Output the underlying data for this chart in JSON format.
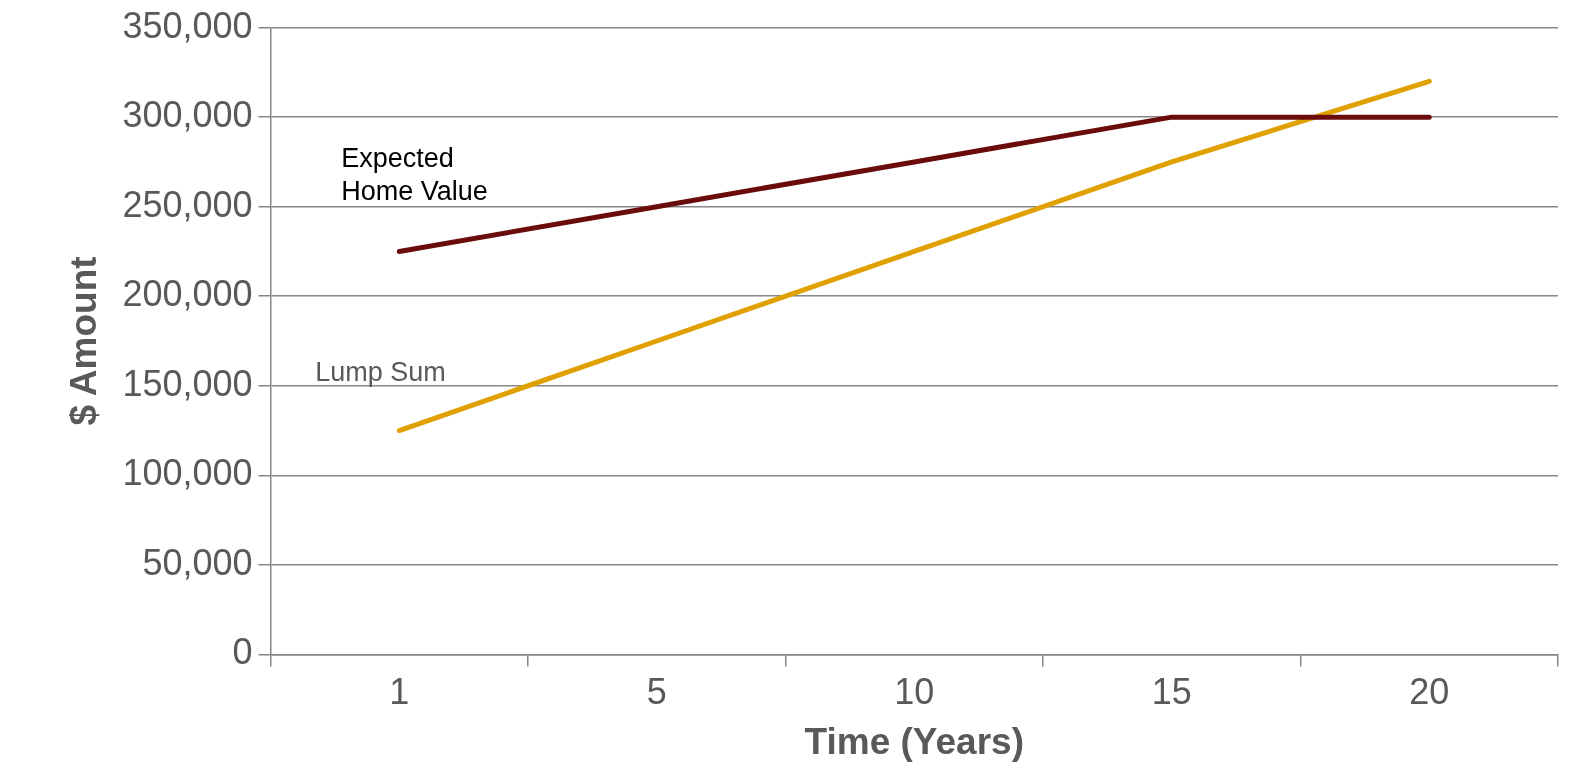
{
  "chart_data": {
    "type": "line",
    "xlabel": "Time (Years)",
    "ylabel": "$ Amount",
    "categories": [
      "1",
      "5",
      "10",
      "15",
      "20"
    ],
    "series": [
      {
        "name": "Expected Home Value",
        "color": "#6b0c0c",
        "values": [
          225000,
          250000,
          275000,
          300000,
          300000
        ]
      },
      {
        "name": "Lump Sum",
        "color": "#e0a000",
        "values": [
          125000,
          175000,
          225000,
          275000,
          320000
        ]
      }
    ],
    "ylim": [
      0,
      350000
    ],
    "yticks": [
      0,
      {
        "value": 50000,
        "label": "50,000"
      },
      {
        "value": 100000,
        "label": "100,000"
      },
      {
        "value": 150000,
        "label": "150,000"
      },
      {
        "value": 200000,
        "label": "200,000"
      },
      {
        "value": 250000,
        "label": "250,000"
      },
      {
        "value": 300000,
        "label": "300,000"
      },
      {
        "value": 350000,
        "label": "350,000"
      }
    ],
    "grid": "y",
    "legend": false,
    "marker": "none",
    "line_style": "solid"
  }
}
